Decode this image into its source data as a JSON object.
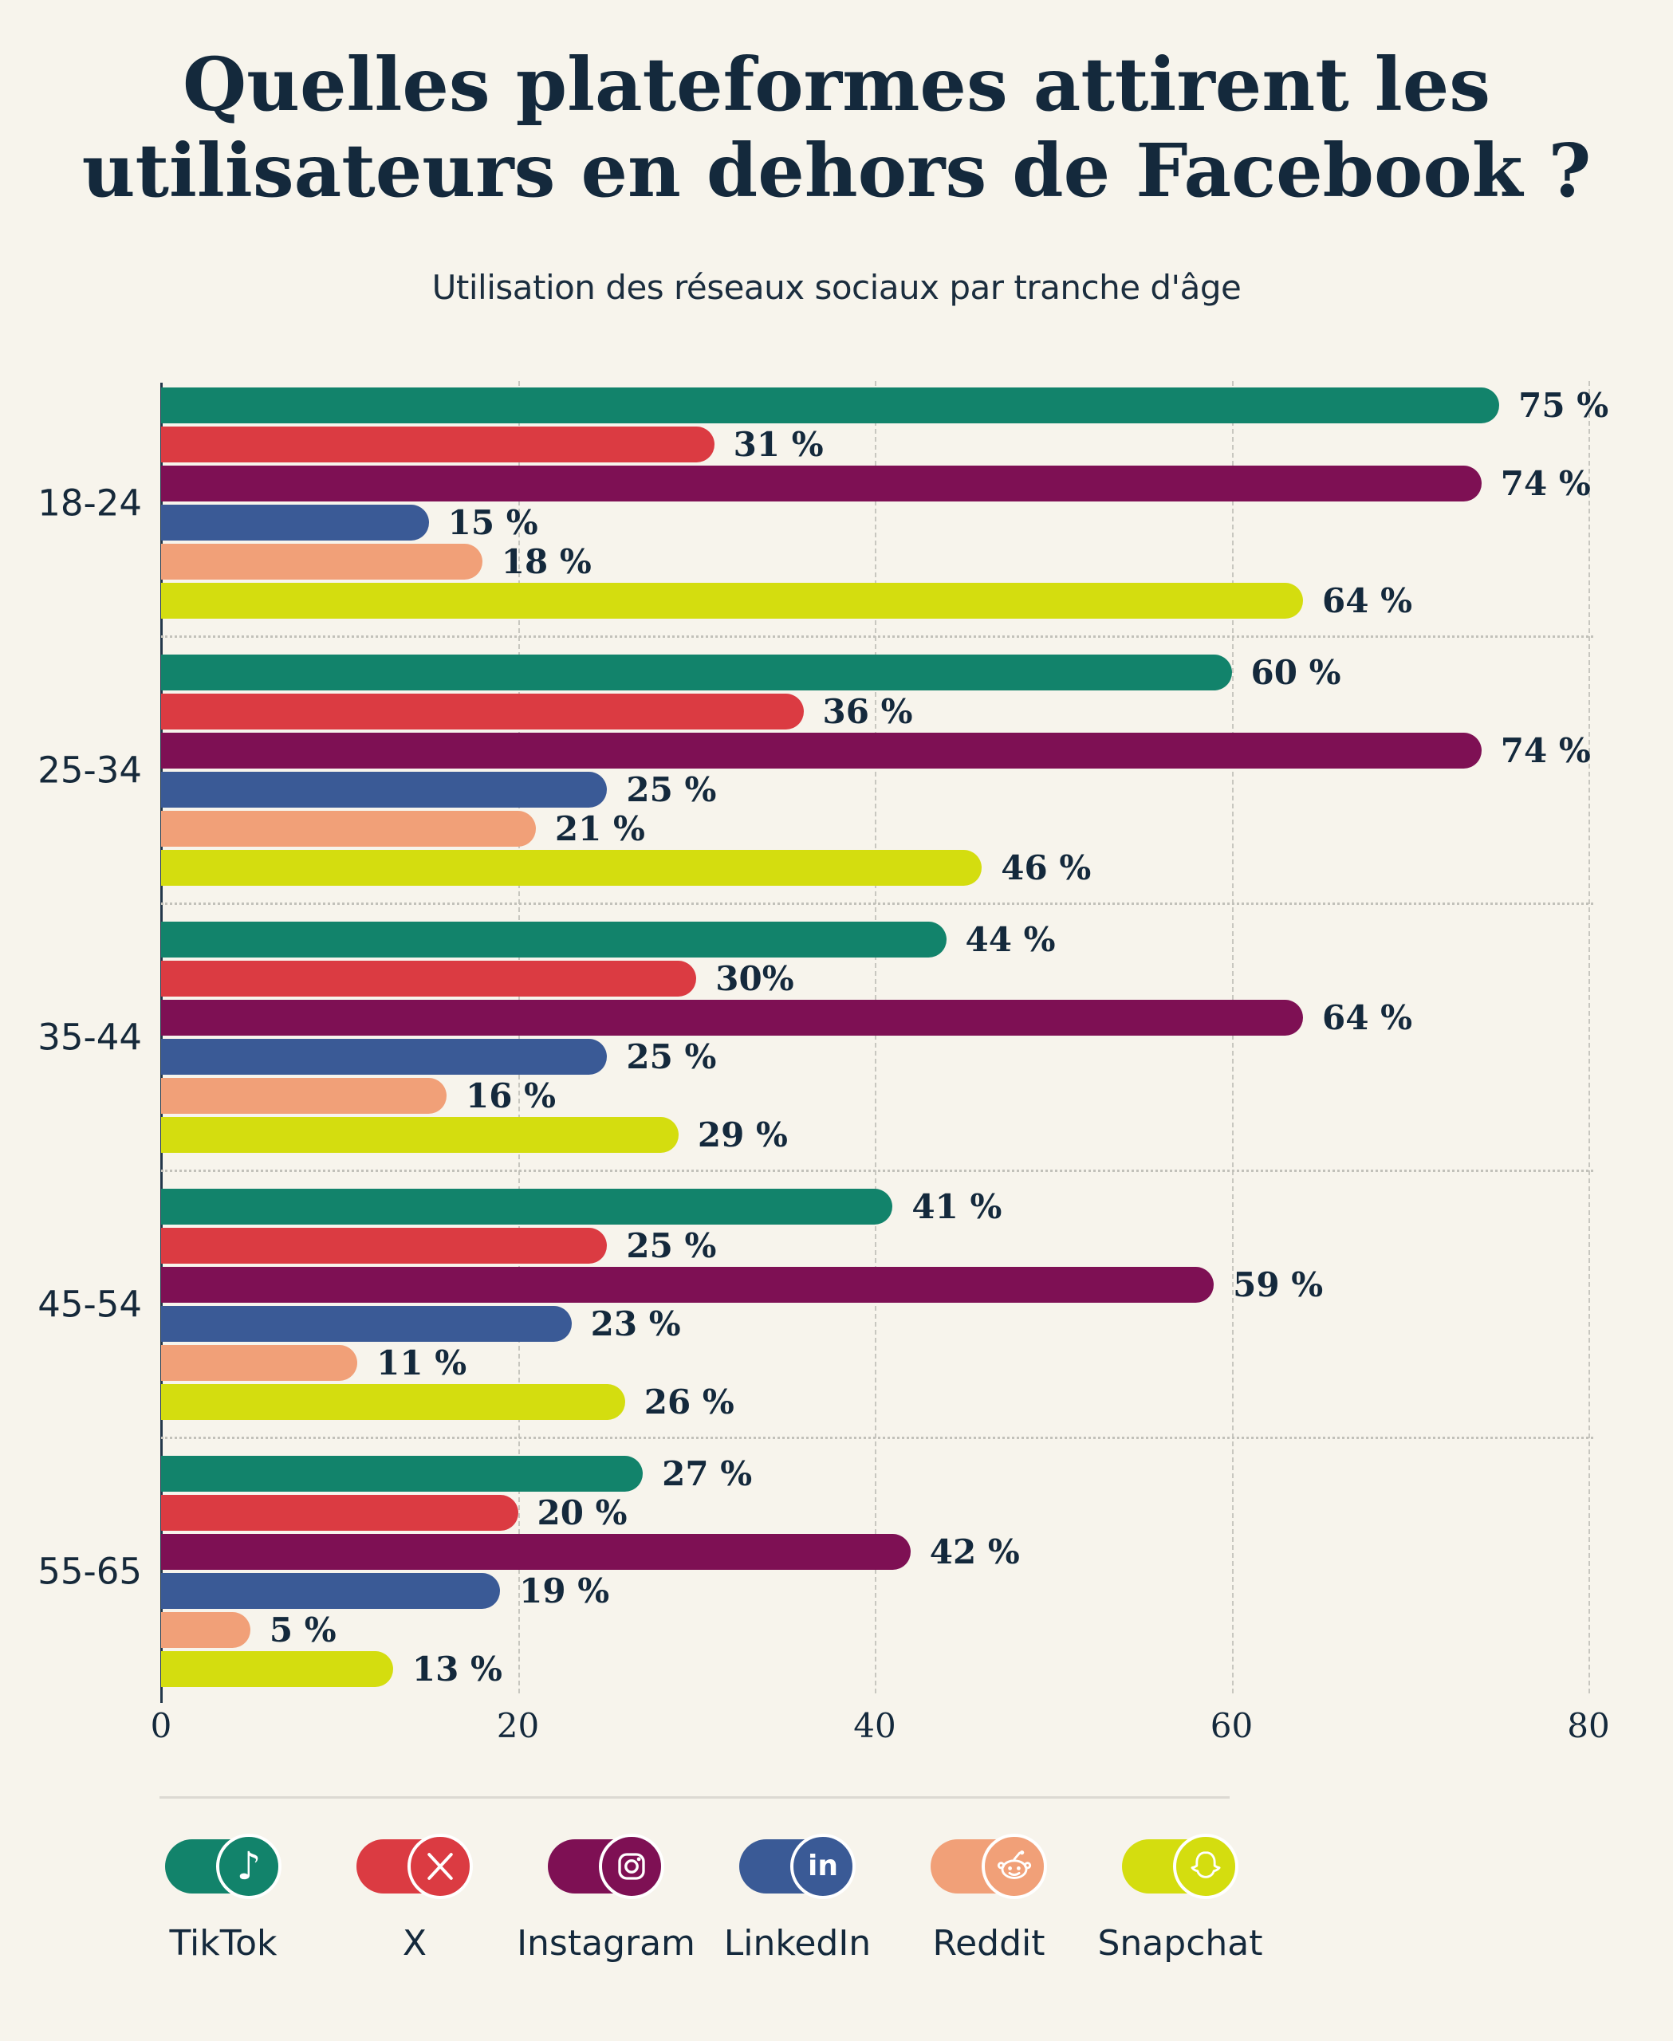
{
  "title": {
    "line1": "Quelles plateformes attirent les",
    "line2": "utilisateurs en dehors de Facebook ?"
  },
  "subtitle": "Utilisation des réseaux sociaux par tranche d'âge",
  "colors": {
    "background": "#F7F4EC",
    "text": "#14293C",
    "gridline": "#C8C7C0",
    "axis": "#23374A",
    "group_separator": "#C2C1BA",
    "legend_divider": "#DCD9D2"
  },
  "chart_data": {
    "type": "bar",
    "orientation": "horizontal",
    "title": "Quelles plateformes attirent les utilisateurs en dehors de Facebook ?",
    "subtitle": "Utilisation des réseaux sociaux par tranche d'âge",
    "categories": [
      "18-24",
      "25-34",
      "35-44",
      "45-54",
      "55-65"
    ],
    "series": [
      {
        "name": "TikTok",
        "color": "#12836B",
        "values": [
          75,
          60,
          44,
          41,
          27
        ],
        "labels": [
          "75 %",
          "60 %",
          "44 %",
          "41 %",
          "27 %"
        ]
      },
      {
        "name": "X",
        "color": "#DB3B42",
        "values": [
          31,
          36,
          30,
          25,
          20
        ],
        "labels": [
          "31 %",
          "36 %",
          "30%",
          "25 %",
          "20 %"
        ]
      },
      {
        "name": "Instagram",
        "color": "#7E1054",
        "values": [
          74,
          74,
          64,
          59,
          42
        ],
        "labels": [
          "74 %",
          "74 %",
          "64 %",
          "59 %",
          "42 %"
        ]
      },
      {
        "name": "LinkedIn",
        "color": "#3A5A96",
        "values": [
          15,
          25,
          25,
          23,
          19
        ],
        "labels": [
          "15 %",
          "25 %",
          "25 %",
          "23 %",
          "19 %"
        ]
      },
      {
        "name": "Reddit",
        "color": "#F1A078",
        "values": [
          18,
          21,
          16,
          11,
          5
        ],
        "labels": [
          "18 %",
          "21 %",
          "16 %",
          "11 %",
          "5 %"
        ]
      },
      {
        "name": "Snapchat",
        "color": "#D4DD0F",
        "values": [
          64,
          46,
          29,
          26,
          13
        ],
        "labels": [
          "64 %",
          "46 %",
          "29 %",
          "26 %",
          "13 %"
        ]
      }
    ],
    "xlim": [
      0,
      80
    ],
    "xticks": [
      "0",
      "20",
      "40",
      "60",
      "80"
    ],
    "grid": "vertical dashed gridlines at 20/40/60/80, dotted separators between age groups",
    "legend_position": "bottom"
  },
  "legend": {
    "items": [
      {
        "label": "TikTok",
        "icon": "tiktok-icon",
        "color": "#12836B"
      },
      {
        "label": "X",
        "icon": "x-icon",
        "color": "#DB3B42"
      },
      {
        "label": "Instagram",
        "icon": "instagram-icon",
        "color": "#7E1054"
      },
      {
        "label": "LinkedIn",
        "icon": "linkedin-icon",
        "color": "#3A5A96"
      },
      {
        "label": "Reddit",
        "icon": "reddit-icon",
        "color": "#F1A078"
      },
      {
        "label": "Snapchat",
        "icon": "snapchat-icon",
        "color": "#D4DD0F"
      }
    ]
  }
}
